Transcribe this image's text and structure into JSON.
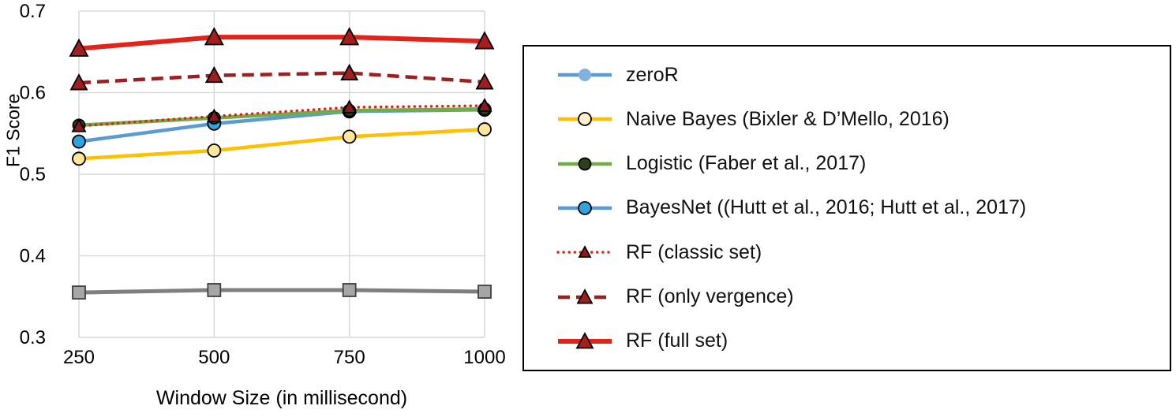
{
  "page": {
    "background": "#ffffff"
  },
  "chart_data": {
    "type": "line",
    "title": "",
    "xlabel": "Window Size (in millisecond)",
    "ylabel": "F1 Score",
    "x": [
      250,
      500,
      750,
      1000
    ],
    "xtick_labels": [
      "250",
      "500",
      "750",
      "1000"
    ],
    "ylim": [
      0.3,
      0.7
    ],
    "yticks": [
      0.3,
      0.4,
      0.5,
      0.6,
      0.7
    ],
    "ytick_labels": [
      "0.3",
      "0.4",
      "0.5",
      "0.6",
      "0.7"
    ],
    "grid": true,
    "gridline_color": "#d9d9d9",
    "legend_position": "right",
    "series": [
      {
        "name": "zeroR",
        "values": [
          0.355,
          0.358,
          0.358,
          0.356
        ],
        "line_color": "#7f7f7f",
        "line_dash": "solid",
        "line_width": 5,
        "marker": "square",
        "marker_size": 8,
        "marker_fill": "#a6a6a6",
        "marker_edge": "#404040"
      },
      {
        "name": "Naive Bayes (Bixler & D’Mello, 2016)",
        "values": [
          0.519,
          0.529,
          0.546,
          0.555
        ],
        "line_color": "#ffc000",
        "line_dash": "solid",
        "line_width": 4.5,
        "marker": "circle",
        "marker_size": 8,
        "marker_fill": "#ffe699",
        "marker_edge": "#000000"
      },
      {
        "name": "BayesNet ((Hutt et al., 2016; Hutt et al., 2017)",
        "values": [
          0.54,
          0.562,
          0.577,
          0.579
        ],
        "line_color": "#5b9bd5",
        "line_dash": "solid",
        "line_width": 4.5,
        "marker": "circle",
        "marker_size": 8,
        "marker_fill": "#2fa3dc",
        "marker_edge": "#000000"
      },
      {
        "name": "Logistic (Faber et al., 2017)",
        "values": [
          0.56,
          0.569,
          0.578,
          0.58
        ],
        "line_color": "#70ad47",
        "line_dash": "solid",
        "line_width": 4.5,
        "marker": "circle",
        "marker_size": 7.5,
        "marker_fill": "#2e4016",
        "marker_edge": "#000000"
      },
      {
        "name": "RF (classic set)",
        "values": [
          0.559,
          0.571,
          0.582,
          0.584
        ],
        "line_color": "#e2231a",
        "line_dash": "dotted",
        "line_width": 3.5,
        "marker": "triangle",
        "marker_size": 8,
        "marker_fill": "#8b1a1a",
        "marker_edge": "#000000"
      },
      {
        "name": "RF (only vergence)",
        "values": [
          0.612,
          0.621,
          0.624,
          0.613
        ],
        "line_color": "#9e1f1f",
        "line_dash": "dashed",
        "line_width": 4.5,
        "marker": "triangle",
        "marker_size": 10,
        "marker_fill": "#9e1f1f",
        "marker_edge": "#000000"
      },
      {
        "name": "RF (full set)",
        "values": [
          0.654,
          0.668,
          0.668,
          0.663
        ],
        "line_color": "#e2231a",
        "line_dash": "solid",
        "line_width": 6,
        "marker": "triangle",
        "marker_size": 11,
        "marker_fill": "#a51d1d",
        "marker_edge": "#000000"
      }
    ]
  },
  "legend": {
    "items": [
      {
        "label": "zeroR",
        "line_color": "#5b9bd5",
        "line_dash": "solid",
        "line_width": 4.5,
        "marker": "circle",
        "marker_size": 8,
        "marker_fill": "#7fb2de",
        "marker_edge": "none"
      },
      {
        "label": "Naive Bayes (Bixler & D’Mello, 2016)",
        "line_color": "#ffc000",
        "line_dash": "solid",
        "line_width": 4.5,
        "marker": "circle",
        "marker_size": 8,
        "marker_fill": "#fff2cc",
        "marker_edge": "#000000"
      },
      {
        "label": "Logistic (Faber et al., 2017)",
        "line_color": "#70ad47",
        "line_dash": "solid",
        "line_width": 4.5,
        "marker": "circle",
        "marker_size": 7.5,
        "marker_fill": "#2e4016",
        "marker_edge": "#000000"
      },
      {
        "label": "BayesNet ((Hutt et al., 2016; Hutt et al., 2017)",
        "line_color": "#5b9bd5",
        "line_dash": "solid",
        "line_width": 4.5,
        "marker": "circle",
        "marker_size": 8,
        "marker_fill": "#2fa3dc",
        "marker_edge": "#000000"
      },
      {
        "label": "RF (classic set)",
        "line_color": "#e2231a",
        "line_dash": "dotted",
        "line_width": 3.5,
        "marker": "triangle",
        "marker_size": 7,
        "marker_fill": "#8b1a1a",
        "marker_edge": "#000000"
      },
      {
        "label": "RF (only vergence)",
        "line_color": "#9e1f1f",
        "line_dash": "dashed",
        "line_width": 4.5,
        "marker": "triangle",
        "marker_size": 9,
        "marker_fill": "#9e1f1f",
        "marker_edge": "#000000"
      },
      {
        "label": "RF (full set)",
        "line_color": "#e2231a",
        "line_dash": "solid",
        "line_width": 6,
        "marker": "triangle",
        "marker_size": 10,
        "marker_fill": "#a51d1d",
        "marker_edge": "#000000"
      }
    ]
  }
}
